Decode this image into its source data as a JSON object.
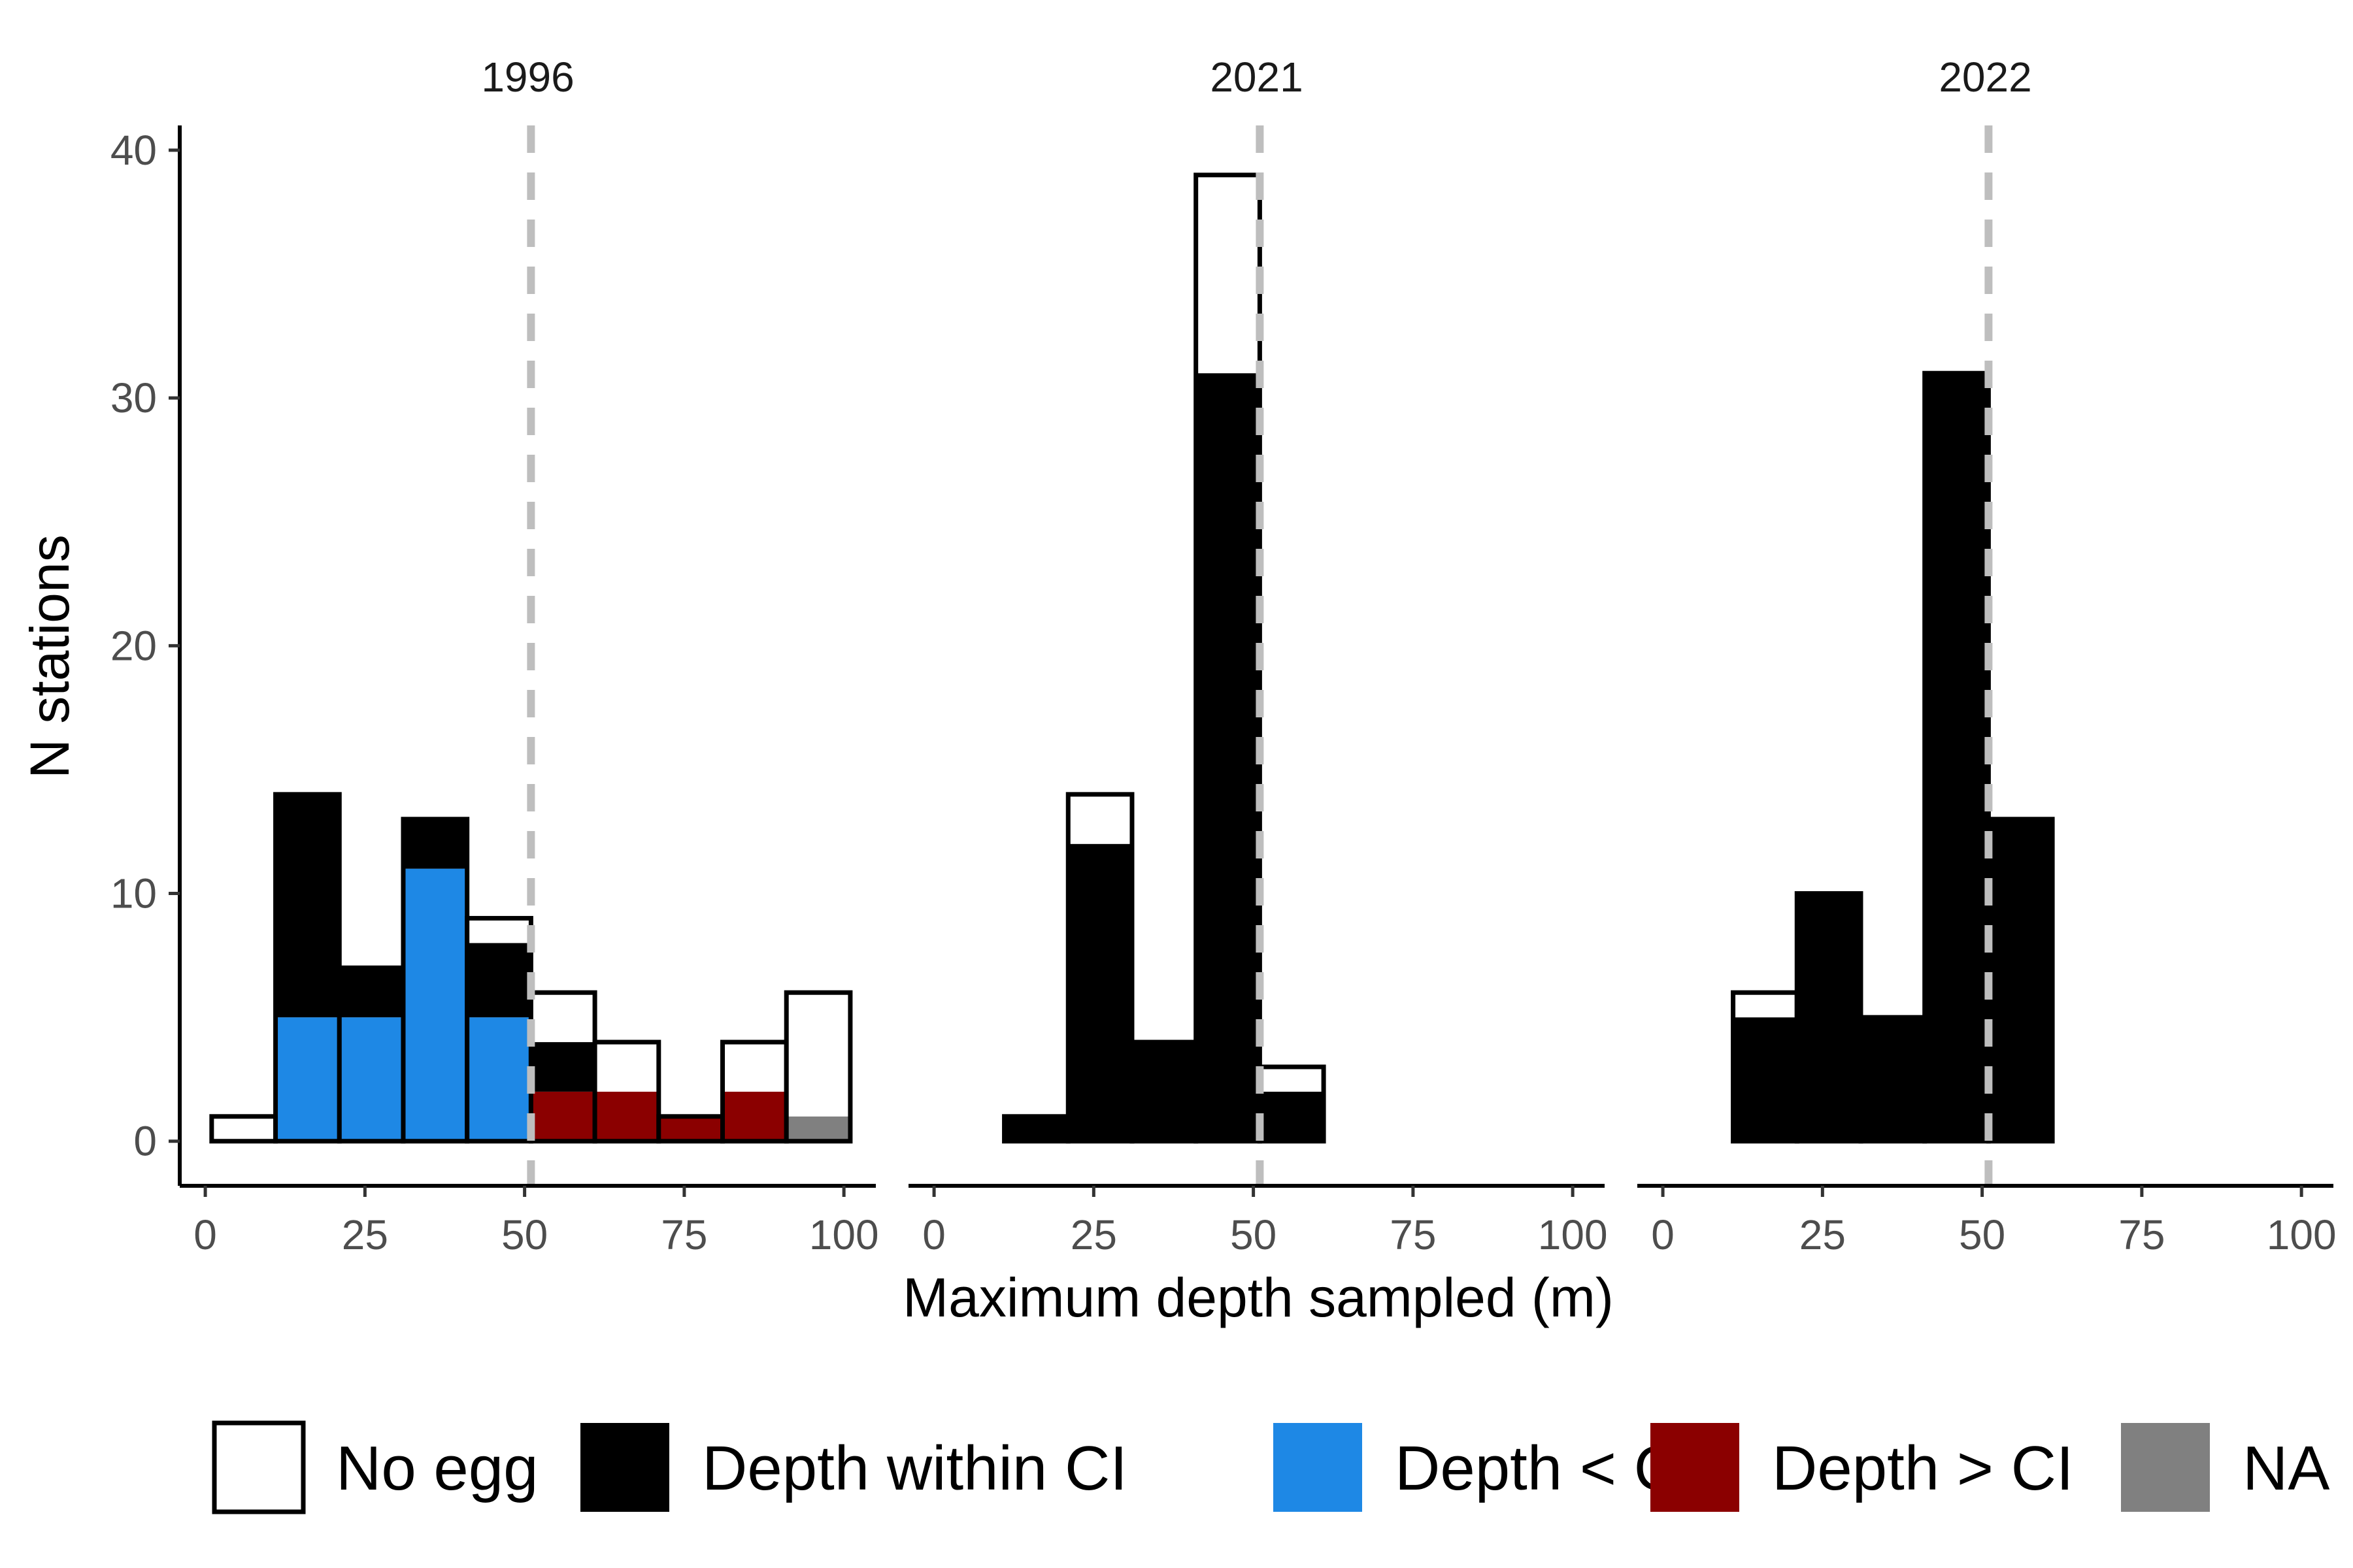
{
  "chart_data": {
    "type": "bar",
    "subtype": "stacked-histogram",
    "xlabel": "Maximum depth sampled (m)",
    "ylabel": "N stations",
    "xlim": [
      -4,
      105
    ],
    "ylim": [
      -1.8,
      41
    ],
    "x_ticks": [
      0,
      25,
      50,
      75,
      100
    ],
    "y_ticks": [
      0,
      10,
      20,
      30,
      40
    ],
    "bin_width": 10,
    "reference_line_x": 51,
    "reference_line_color": "#bebebe",
    "grid": false,
    "legend_position": "bottom",
    "categories": [
      {
        "key": "no_egg",
        "label": "No egg",
        "fill": "#ffffff"
      },
      {
        "key": "within",
        "label": "Depth within CI",
        "fill": "#000000"
      },
      {
        "key": "less",
        "label": "Depth < CI",
        "fill": "#1e88e5"
      },
      {
        "key": "greater",
        "label": "Depth > CI",
        "fill": "#8b0000"
      },
      {
        "key": "na",
        "label": "NA",
        "fill": "#808080"
      }
    ],
    "stack_order": [
      "na",
      "greater",
      "less",
      "within",
      "no_egg"
    ],
    "facets": [
      {
        "label": "1996",
        "bins": [
          {
            "x": 6,
            "no_egg": 1,
            "within": 0,
            "less": 0,
            "greater": 0,
            "na": 0
          },
          {
            "x": 16,
            "no_egg": 0,
            "within": 9,
            "less": 5,
            "greater": 0,
            "na": 0
          },
          {
            "x": 26,
            "no_egg": 0,
            "within": 2,
            "less": 5,
            "greater": 0,
            "na": 0
          },
          {
            "x": 36,
            "no_egg": 0,
            "within": 2,
            "less": 11,
            "greater": 0,
            "na": 0
          },
          {
            "x": 46,
            "no_egg": 1,
            "within": 3,
            "less": 5,
            "greater": 0,
            "na": 0
          },
          {
            "x": 56,
            "no_egg": 2,
            "within": 2,
            "less": 0,
            "greater": 2,
            "na": 0
          },
          {
            "x": 66,
            "no_egg": 2,
            "within": 0,
            "less": 0,
            "greater": 2,
            "na": 0
          },
          {
            "x": 76,
            "no_egg": 0,
            "within": 0,
            "less": 0,
            "greater": 1,
            "na": 0
          },
          {
            "x": 86,
            "no_egg": 2,
            "within": 0,
            "less": 0,
            "greater": 2,
            "na": 0
          },
          {
            "x": 96,
            "no_egg": 5,
            "within": 0,
            "less": 0,
            "greater": 0,
            "na": 1
          }
        ]
      },
      {
        "label": "2021",
        "bins": [
          {
            "x": 16,
            "no_egg": 0,
            "within": 1,
            "less": 0,
            "greater": 0,
            "na": 0
          },
          {
            "x": 26,
            "no_egg": 2,
            "within": 12,
            "less": 0,
            "greater": 0,
            "na": 0
          },
          {
            "x": 36,
            "no_egg": 0,
            "within": 4,
            "less": 0,
            "greater": 0,
            "na": 0
          },
          {
            "x": 46,
            "no_egg": 8,
            "within": 31,
            "less": 0,
            "greater": 0,
            "na": 0
          },
          {
            "x": 56,
            "no_egg": 1,
            "within": 2,
            "less": 0,
            "greater": 0,
            "na": 0
          }
        ]
      },
      {
        "label": "2022",
        "bins": [
          {
            "x": 16,
            "no_egg": 1,
            "within": 5,
            "less": 0,
            "greater": 0,
            "na": 0
          },
          {
            "x": 26,
            "no_egg": 0,
            "within": 10,
            "less": 0,
            "greater": 0,
            "na": 0
          },
          {
            "x": 36,
            "no_egg": 0,
            "within": 5,
            "less": 0,
            "greater": 0,
            "na": 0
          },
          {
            "x": 46,
            "no_egg": 0,
            "within": 31,
            "less": 0,
            "greater": 0,
            "na": 0
          },
          {
            "x": 56,
            "no_egg": 0,
            "within": 13,
            "less": 0,
            "greater": 0,
            "na": 0
          }
        ]
      }
    ]
  }
}
